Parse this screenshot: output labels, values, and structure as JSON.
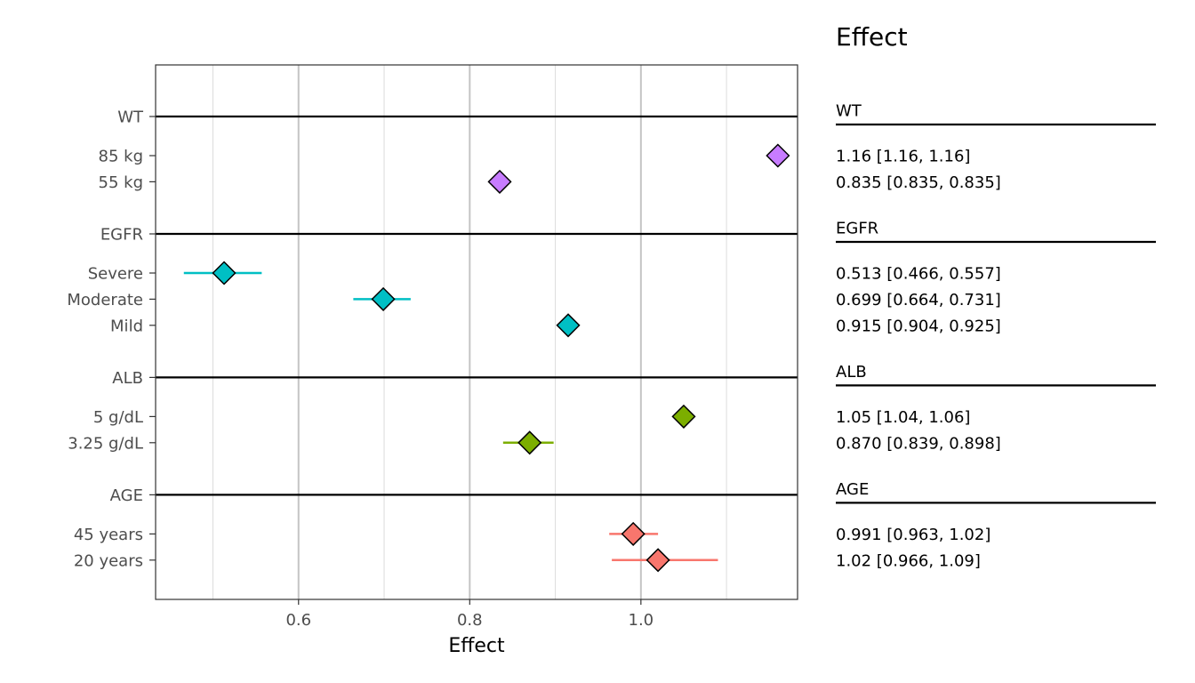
{
  "chart_data": {
    "type": "forest",
    "xlabel": "Effect",
    "xlim": [
      0.433,
      1.183
    ],
    "xticks": [
      0.6,
      0.8,
      1.0
    ],
    "xtick_labels": [
      "0.6",
      "0.8",
      "1.0"
    ],
    "grid": true,
    "table_title": "Effect",
    "groups": [
      {
        "name": "WT",
        "color": "#C77CFF",
        "rows": [
          {
            "label": "85 kg",
            "estimate": 1.16,
            "lower": 1.16,
            "upper": 1.16,
            "text": "1.16 [1.16, 1.16]"
          },
          {
            "label": "55 kg",
            "estimate": 0.835,
            "lower": 0.835,
            "upper": 0.835,
            "text": "0.835 [0.835, 0.835]"
          }
        ]
      },
      {
        "name": "EGFR",
        "color": "#00BFC4",
        "rows": [
          {
            "label": "Severe",
            "estimate": 0.513,
            "lower": 0.466,
            "upper": 0.557,
            "text": "0.513 [0.466, 0.557]"
          },
          {
            "label": "Moderate",
            "estimate": 0.699,
            "lower": 0.664,
            "upper": 0.731,
            "text": "0.699 [0.664, 0.731]"
          },
          {
            "label": "Mild",
            "estimate": 0.915,
            "lower": 0.904,
            "upper": 0.925,
            "text": "0.915 [0.904, 0.925]"
          }
        ]
      },
      {
        "name": "ALB",
        "color": "#7CAE00",
        "rows": [
          {
            "label": "5 g/dL",
            "estimate": 1.05,
            "lower": 1.04,
            "upper": 1.06,
            "text": "1.05 [1.04, 1.06]"
          },
          {
            "label": "3.25 g/dL",
            "estimate": 0.87,
            "lower": 0.839,
            "upper": 0.898,
            "text": "0.870 [0.839, 0.898]"
          }
        ]
      },
      {
        "name": "AGE",
        "color": "#F8766D",
        "rows": [
          {
            "label": "45 years",
            "estimate": 0.991,
            "lower": 0.963,
            "upper": 1.02,
            "text": "0.991 [0.963, 1.02]"
          },
          {
            "label": "20 years",
            "estimate": 1.02,
            "lower": 0.966,
            "upper": 1.09,
            "text": "1.02 [0.966, 1.09]"
          }
        ]
      }
    ]
  }
}
